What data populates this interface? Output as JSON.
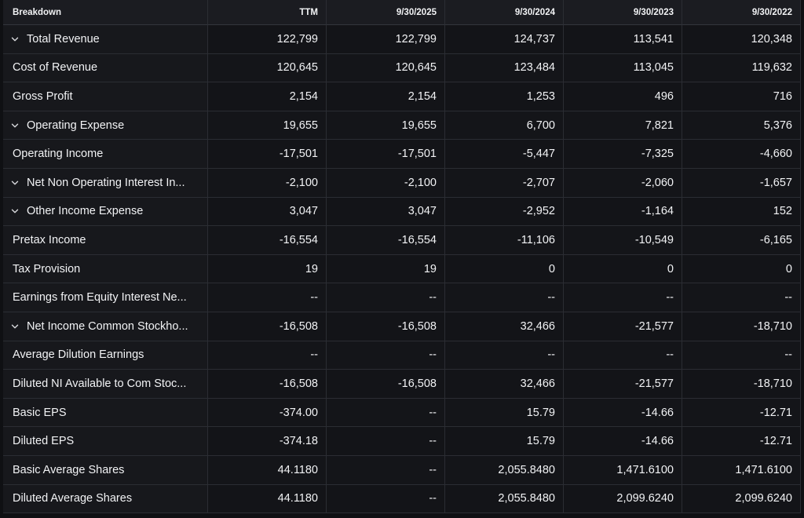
{
  "header": {
    "breakdown": "Breakdown",
    "columns": [
      "TTM",
      "9/30/2025",
      "9/30/2024",
      "9/30/2023",
      "9/30/2022"
    ]
  },
  "rows": [
    {
      "label": "Total Revenue",
      "expandable": true,
      "values": [
        "122,799",
        "122,799",
        "124,737",
        "113,541",
        "120,348"
      ]
    },
    {
      "label": "Cost of Revenue",
      "expandable": false,
      "values": [
        "120,645",
        "120,645",
        "123,484",
        "113,045",
        "119,632"
      ]
    },
    {
      "label": "Gross Profit",
      "expandable": false,
      "values": [
        "2,154",
        "2,154",
        "1,253",
        "496",
        "716"
      ]
    },
    {
      "label": "Operating Expense",
      "expandable": true,
      "values": [
        "19,655",
        "19,655",
        "6,700",
        "7,821",
        "5,376"
      ]
    },
    {
      "label": "Operating Income",
      "expandable": false,
      "values": [
        "-17,501",
        "-17,501",
        "-5,447",
        "-7,325",
        "-4,660"
      ]
    },
    {
      "label": "Net Non Operating Interest In...",
      "expandable": true,
      "values": [
        "-2,100",
        "-2,100",
        "-2,707",
        "-2,060",
        "-1,657"
      ]
    },
    {
      "label": "Other Income Expense",
      "expandable": true,
      "values": [
        "3,047",
        "3,047",
        "-2,952",
        "-1,164",
        "152"
      ]
    },
    {
      "label": "Pretax Income",
      "expandable": false,
      "values": [
        "-16,554",
        "-16,554",
        "-11,106",
        "-10,549",
        "-6,165"
      ]
    },
    {
      "label": "Tax Provision",
      "expandable": false,
      "values": [
        "19",
        "19",
        "0",
        "0",
        "0"
      ]
    },
    {
      "label": "Earnings from Equity Interest Ne...",
      "expandable": false,
      "values": [
        "--",
        "--",
        "--",
        "--",
        "--"
      ]
    },
    {
      "label": "Net Income Common Stockho...",
      "expandable": true,
      "values": [
        "-16,508",
        "-16,508",
        "32,466",
        "-21,577",
        "-18,710"
      ]
    },
    {
      "label": "Average Dilution Earnings",
      "expandable": false,
      "values": [
        "--",
        "--",
        "--",
        "--",
        "--"
      ]
    },
    {
      "label": "Diluted NI Available to Com Stoc...",
      "expandable": false,
      "values": [
        "-16,508",
        "-16,508",
        "32,466",
        "-21,577",
        "-18,710"
      ]
    },
    {
      "label": "Basic EPS",
      "expandable": false,
      "values": [
        "-374.00",
        "--",
        "15.79",
        "-14.66",
        "-12.71"
      ]
    },
    {
      "label": "Diluted EPS",
      "expandable": false,
      "values": [
        "-374.18",
        "--",
        "15.79",
        "-14.66",
        "-12.71"
      ]
    },
    {
      "label": "Basic Average Shares",
      "expandable": false,
      "values": [
        "44.1180",
        "--",
        "2,055.8480",
        "1,471.6100",
        "1,471.6100"
      ]
    },
    {
      "label": "Diluted Average Shares",
      "expandable": false,
      "values": [
        "44.1180",
        "--",
        "2,055.8480",
        "2,099.6240",
        "2,099.6240"
      ]
    }
  ]
}
